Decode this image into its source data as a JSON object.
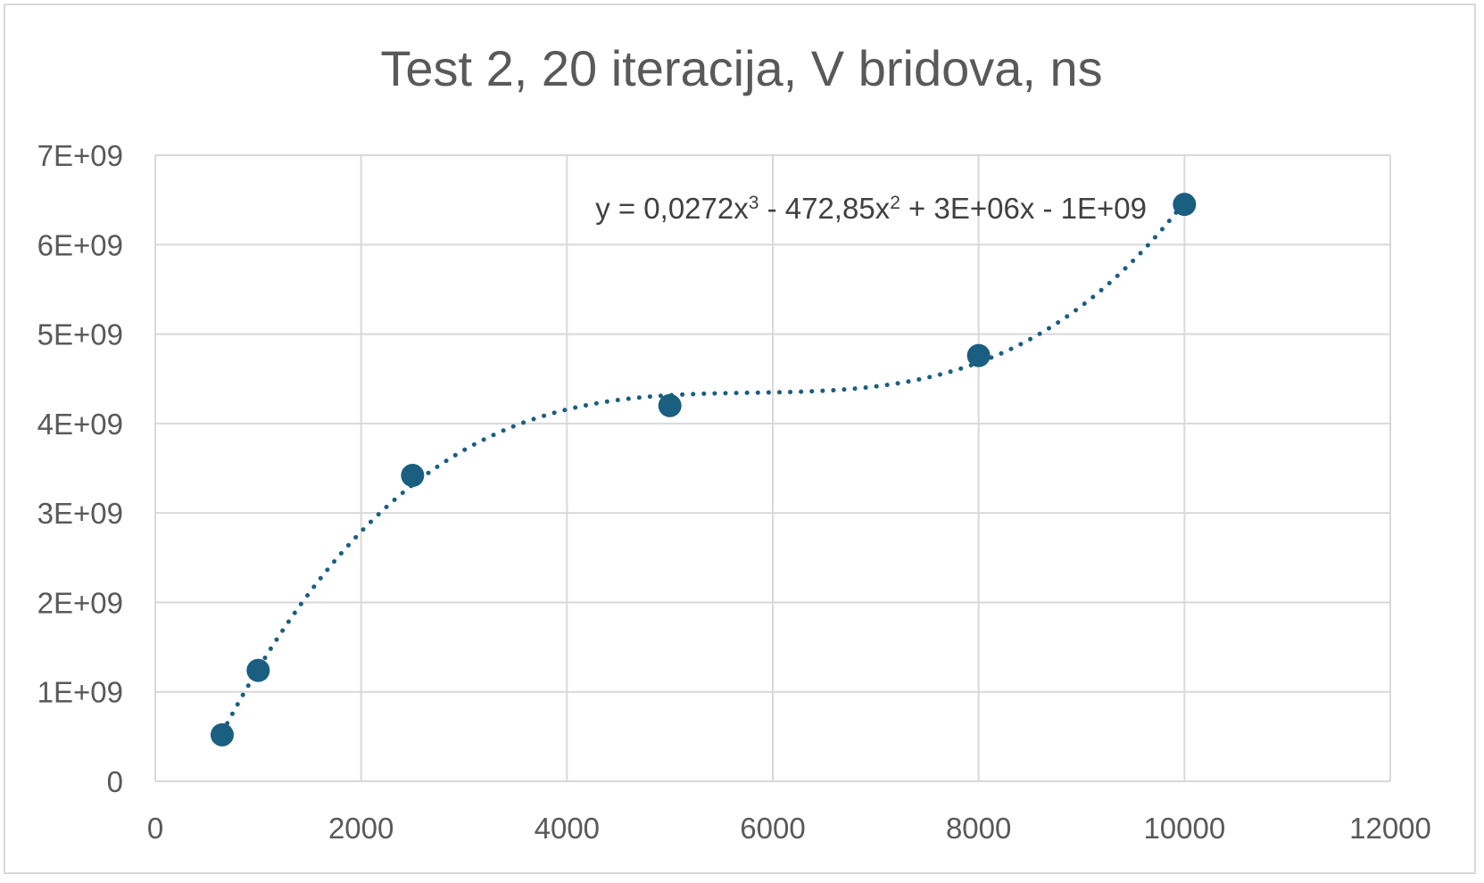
{
  "chart_data": {
    "type": "scatter",
    "title": "Test 2, 20 iteracija, V bridova, ns",
    "xlabel": "",
    "ylabel": "",
    "xlim": [
      0,
      12000
    ],
    "ylim": [
      0,
      7000000000
    ],
    "x_ticks": [
      0,
      2000,
      4000,
      6000,
      8000,
      10000,
      12000
    ],
    "x_tick_labels": [
      "0",
      "2000",
      "4000",
      "6000",
      "8000",
      "10000",
      "12000"
    ],
    "y_ticks": [
      0,
      1000000000,
      2000000000,
      3000000000,
      4000000000,
      5000000000,
      6000000000,
      7000000000
    ],
    "y_tick_labels": [
      "0",
      "1E+09",
      "2E+09",
      "3E+09",
      "4E+09",
      "5E+09",
      "6E+09",
      "7E+09"
    ],
    "grid": true,
    "legend": "none",
    "series": [
      {
        "x": [
          650,
          1000,
          2500,
          5000,
          8000,
          10000
        ],
        "y": [
          520000000,
          1240000000,
          3420000000,
          4200000000,
          4760000000,
          6450000000
        ],
        "color": "#1a5e80"
      }
    ],
    "trendline": {
      "type": "polynomial",
      "order": 3,
      "style": "dotted",
      "color": "#1a5e80",
      "equation_parts": [
        "y = 0,0272x",
        "3",
        " - 472,85x",
        "2",
        " + 3E+06x - 1E+09"
      ]
    }
  }
}
